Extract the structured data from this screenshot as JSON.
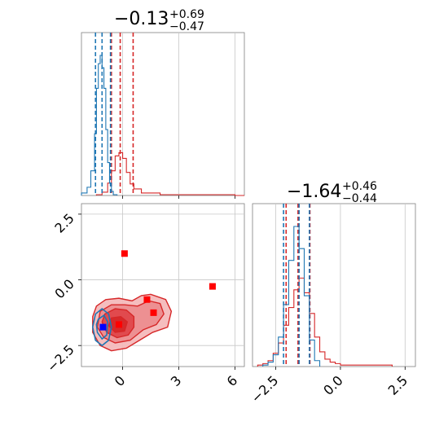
{
  "chart_data": [
    {
      "type": "histogram",
      "panel": "marginal-x",
      "title_value": "−0.13",
      "title_plus": "+0.69",
      "title_minus": "−0.47",
      "xlim": [
        -2.2,
        6.5
      ],
      "grid": true,
      "series": [
        {
          "color": "#d62728",
          "bin_edges": [
            -1.4,
            -1.1,
            -0.8,
            -0.6,
            -0.4,
            -0.2,
            0,
            0.2,
            0.4,
            0.6,
            1.0,
            2.0,
            3.0,
            4.0,
            5.0,
            6.0,
            6.5
          ],
          "counts": [
            1,
            4,
            15,
            30,
            48,
            52,
            45,
            28,
            14,
            8,
            3,
            1,
            1,
            1,
            1,
            0
          ],
          "quantile_lines": [
            -0.6,
            -0.13,
            0.56
          ]
        },
        {
          "color": "#1f77b4",
          "bin_edges": [
            -2.2,
            -1.9,
            -1.7,
            -1.5,
            -1.4,
            -1.3,
            -1.2,
            -1.1,
            -1.0,
            -0.9,
            -0.8,
            -0.7,
            -0.6,
            -0.5,
            -0.3
          ],
          "counts": [
            3,
            10,
            30,
            75,
            130,
            160,
            170,
            155,
            130,
            80,
            40,
            15,
            5,
            1
          ],
          "quantile_lines": [
            -1.45,
            -1.1,
            -0.65
          ]
        }
      ]
    },
    {
      "type": "histogram",
      "panel": "marginal-y",
      "title_value": "−1.64",
      "title_plus": "+0.46",
      "title_minus": "−0.44",
      "xlim": [
        -3.4,
        2.9
      ],
      "xticks": [
        "−2.5",
        "0.0",
        "2.5"
      ],
      "xtick_values": [
        -2.5,
        0.0,
        2.5
      ],
      "grid": true,
      "series": [
        {
          "color": "#d62728",
          "bin_edges": [
            -3.2,
            -3.0,
            -2.8,
            -2.6,
            -2.4,
            -2.2,
            -2.0,
            -1.8,
            -1.6,
            -1.4,
            -1.2,
            -1.0,
            -0.8,
            -0.6,
            -0.4,
            -0.2,
            0.0,
            0.2,
            1.0,
            2.0
          ],
          "counts": [
            1,
            2,
            4,
            9,
            16,
            28,
            40,
            52,
            60,
            50,
            36,
            20,
            10,
            5,
            3,
            2,
            1,
            1,
            1
          ],
          "quantile_lines": [
            -2.1,
            -1.64,
            -1.18
          ]
        },
        {
          "color": "#1f77b4",
          "bin_edges": [
            -3.0,
            -2.8,
            -2.6,
            -2.4,
            -2.2,
            -2.0,
            -1.8,
            -1.6,
            -1.4,
            -1.2,
            -1.0,
            -0.8
          ],
          "counts": [
            1,
            3,
            8,
            20,
            42,
            72,
            95,
            80,
            48,
            18,
            4
          ],
          "quantile_lines": [
            -2.2,
            -1.6,
            -1.2
          ]
        }
      ]
    },
    {
      "type": "scatter",
      "panel": "joint",
      "xlim": [
        -2.2,
        6.5
      ],
      "ylim": [
        -3.3,
        2.9
      ],
      "xticks": [
        "0",
        "3",
        "6"
      ],
      "xtick_values": [
        0,
        3,
        6
      ],
      "yticks": [
        "2.5",
        "0.0",
        "−2.5"
      ],
      "ytick_values": [
        2.5,
        0.0,
        -2.5
      ],
      "grid": true,
      "red_squares": [
        {
          "x": 0.1,
          "y": 1.0
        },
        {
          "x": 1.3,
          "y": -0.75
        },
        {
          "x": 1.65,
          "y": -1.25
        },
        {
          "x": 4.8,
          "y": -0.25
        },
        {
          "x": -0.2,
          "y": -1.7
        }
      ],
      "blue_squares": [
        {
          "x": -1.05,
          "y": -1.8
        }
      ],
      "red_contour_levels": [
        {
          "color": "#f4b9ba",
          "points": [
            [
              -1.4,
              -1.0
            ],
            [
              -0.9,
              -0.75
            ],
            [
              -0.2,
              -0.7
            ],
            [
              0.5,
              -0.8
            ],
            [
              1.0,
              -0.6
            ],
            [
              1.5,
              -0.55
            ],
            [
              2.3,
              -0.75
            ],
            [
              2.6,
              -1.2
            ],
            [
              2.4,
              -1.8
            ],
            [
              1.6,
              -2.0
            ],
            [
              0.9,
              -2.3
            ],
            [
              0.2,
              -2.6
            ],
            [
              -0.6,
              -2.7
            ],
            [
              -1.2,
              -2.5
            ],
            [
              -1.6,
              -2.0
            ],
            [
              -1.6,
              -1.4
            ]
          ]
        },
        {
          "color": "#ec8d8f",
          "points": [
            [
              -1.2,
              -1.2
            ],
            [
              -0.6,
              -0.95
            ],
            [
              0.1,
              -0.95
            ],
            [
              0.8,
              -1.0
            ],
            [
              1.4,
              -0.8
            ],
            [
              2.0,
              -0.9
            ],
            [
              2.2,
              -1.3
            ],
            [
              1.8,
              -1.7
            ],
            [
              1.1,
              -1.9
            ],
            [
              0.4,
              -2.3
            ],
            [
              -0.4,
              -2.4
            ],
            [
              -1.0,
              -2.2
            ],
            [
              -1.35,
              -1.8
            ]
          ]
        },
        {
          "color": "#e0474b",
          "points": [
            [
              -0.95,
              -1.3
            ],
            [
              -0.4,
              -1.1
            ],
            [
              0.2,
              -1.15
            ],
            [
              0.6,
              -1.4
            ],
            [
              0.6,
              -1.8
            ],
            [
              0.3,
              -2.1
            ],
            [
              -0.3,
              -2.2
            ],
            [
              -0.85,
              -2.0
            ],
            [
              -1.1,
              -1.6
            ]
          ]
        },
        {
          "color": "#d62728",
          "points": [
            [
              -0.6,
              -1.45
            ],
            [
              -0.1,
              -1.4
            ],
            [
              0.25,
              -1.6
            ],
            [
              0.1,
              -1.95
            ],
            [
              -0.4,
              -2.0
            ],
            [
              -0.75,
              -1.75
            ]
          ]
        }
      ],
      "blue_contour_levels": [
        {
          "color": "#1f77b4",
          "points": [
            [
              -1.45,
              -1.3
            ],
            [
              -1.1,
              -1.1
            ],
            [
              -0.75,
              -1.3
            ],
            [
              -0.6,
              -1.8
            ],
            [
              -0.75,
              -2.3
            ],
            [
              -1.1,
              -2.5
            ],
            [
              -1.45,
              -2.3
            ],
            [
              -1.6,
              -1.8
            ]
          ]
        },
        {
          "color": "#1f77b4",
          "points": [
            [
              -1.3,
              -1.5
            ],
            [
              -1.0,
              -1.35
            ],
            [
              -0.8,
              -1.6
            ],
            [
              -0.85,
              -2.1
            ],
            [
              -1.1,
              -2.25
            ],
            [
              -1.35,
              -2.0
            ],
            [
              -1.4,
              -1.7
            ]
          ]
        }
      ]
    }
  ]
}
